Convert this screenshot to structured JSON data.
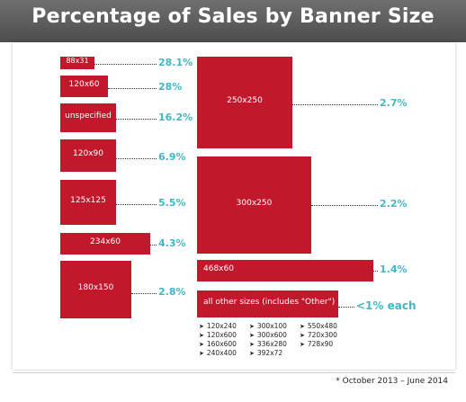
{
  "header": {
    "title": "Percentage of Sales by Banner Size"
  },
  "footnote": "* October 2013 – June 2014",
  "colors": {
    "bar": "#c2182b",
    "value": "#42b6c4",
    "header": "#5a5a5a"
  },
  "chart_data": {
    "type": "bar",
    "title": "Percentage of Sales by Banner Size",
    "categories": [
      "88x31",
      "120x60",
      "unspecified",
      "120x90",
      "125x125",
      "234x60",
      "180x150",
      "250x250",
      "300x250",
      "468x60",
      "all other sizes (includes \"Other\")"
    ],
    "values": [
      28.1,
      28,
      16.2,
      6.9,
      5.5,
      4.3,
      2.8,
      2.7,
      2.2,
      1.4,
      1
    ],
    "value_labels": [
      "28.1%",
      "28%",
      "16.2%",
      "6.9%",
      "5.5%",
      "4.3%",
      "2.8%",
      "2.7%",
      "2.2%",
      "1.4%",
      "<1% each"
    ],
    "other_sizes": [
      "120x240",
      "300x100",
      "550x480",
      "120x600",
      "300x600",
      "720x300",
      "160x600",
      "336x280",
      "728x90",
      "240x400",
      "392x72"
    ]
  }
}
